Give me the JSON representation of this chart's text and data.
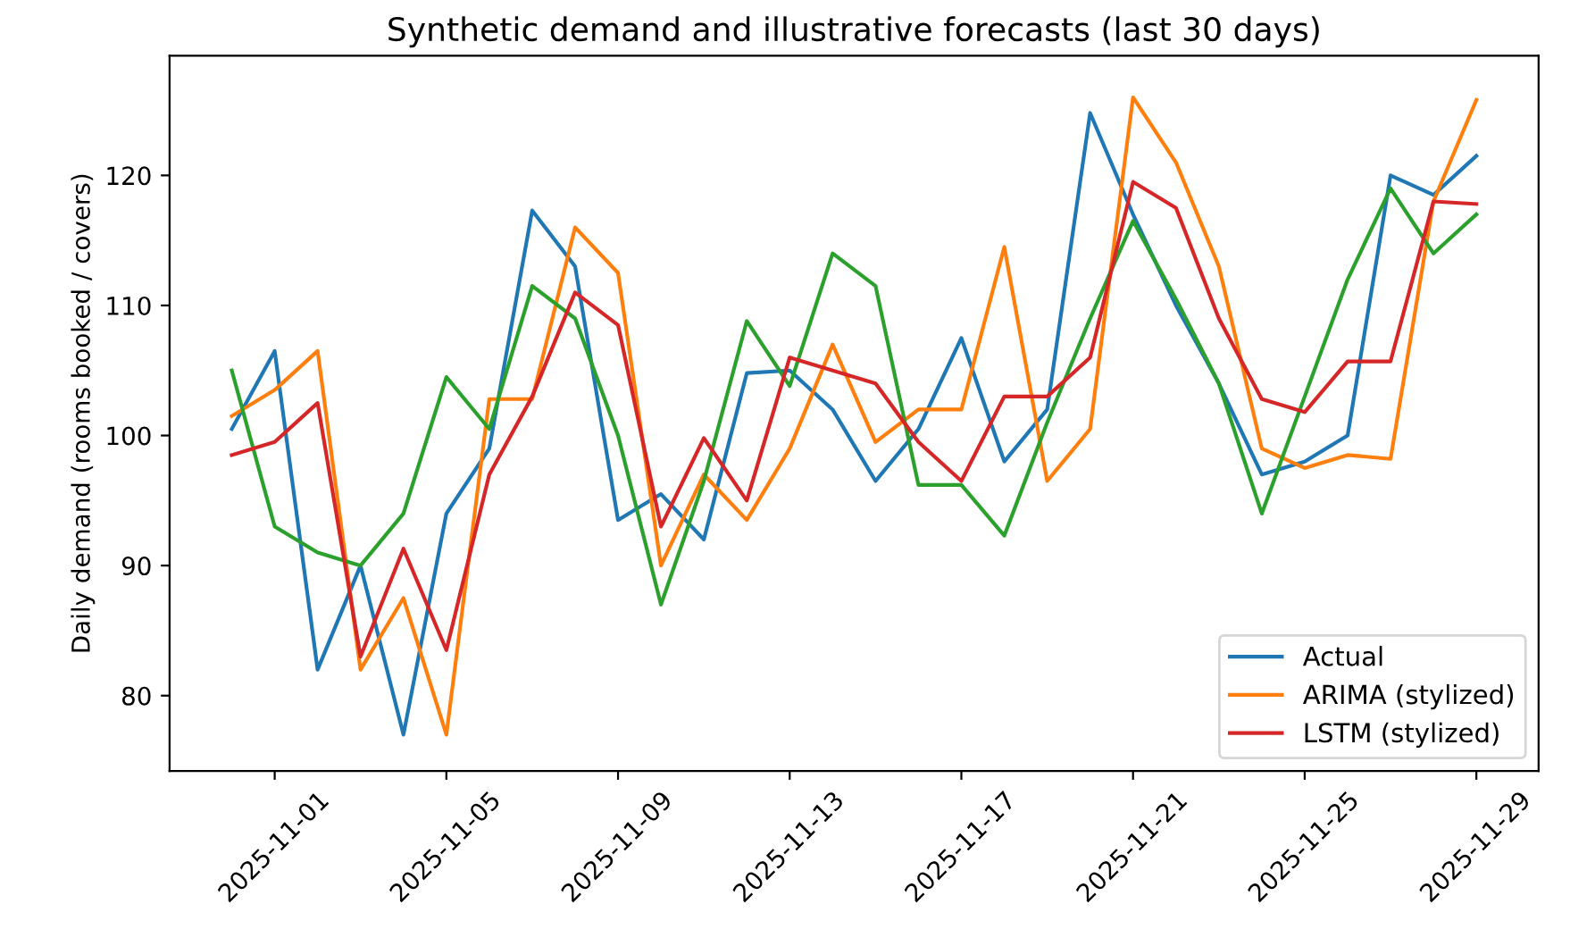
{
  "chart_data": {
    "type": "line",
    "title": "Synthetic demand and illustrative forecasts (last 30 days)",
    "ylabel": "Daily demand (rooms booked / covers)",
    "x": [
      "2025-10-31",
      "2025-11-01",
      "2025-11-02",
      "2025-11-03",
      "2025-11-04",
      "2025-11-05",
      "2025-11-06",
      "2025-11-07",
      "2025-11-08",
      "2025-11-09",
      "2025-11-10",
      "2025-11-11",
      "2025-11-12",
      "2025-11-13",
      "2025-11-14",
      "2025-11-15",
      "2025-11-16",
      "2025-11-17",
      "2025-11-18",
      "2025-11-19",
      "2025-11-20",
      "2025-11-21",
      "2025-11-22",
      "2025-11-23",
      "2025-11-24",
      "2025-11-25",
      "2025-11-26",
      "2025-11-27",
      "2025-11-28",
      "2025-11-29"
    ],
    "series": [
      {
        "name": "Actual",
        "color": "#1f77b4",
        "values": [
          100.5,
          106.5,
          82,
          90,
          77,
          94,
          99,
          117.3,
          113,
          93.5,
          95.5,
          92,
          104.8,
          105,
          102,
          96.5,
          100.5,
          107.5,
          98,
          102,
          124.8,
          117,
          110,
          104,
          97,
          98,
          100,
          120,
          118.5,
          121.5
        ]
      },
      {
        "name": "ARIMA (stylized)",
        "color": "#ff7f0e",
        "values": [
          101.5,
          103.5,
          106.5,
          82,
          87.5,
          77,
          102.8,
          102.8,
          116,
          112.5,
          90,
          97,
          93.5,
          99,
          107,
          99.5,
          102,
          102,
          114.5,
          96.5,
          100.5,
          126,
          121,
          113,
          99,
          97.5,
          98.5,
          98.2,
          118,
          125.8
        ]
      },
      {
        "color": "#2ca02c",
        "values": [
          105,
          93,
          91,
          90,
          94,
          104.5,
          100.5,
          111.5,
          109,
          100,
          87,
          96.5,
          108.8,
          103.8,
          114,
          111.5,
          96.2,
          96.2,
          92.3,
          101,
          109,
          116.5,
          110.5,
          104,
          94,
          103,
          112,
          119,
          114,
          117
        ]
      },
      {
        "name": "LSTM (stylized)",
        "color": "#d62728",
        "values": [
          98.5,
          99.5,
          102.5,
          83,
          91.3,
          83.5,
          97,
          103,
          111,
          108.5,
          93,
          99.8,
          95,
          106,
          105,
          104,
          99.5,
          96.5,
          103,
          103,
          106,
          119.5,
          117.5,
          109,
          102.8,
          101.8,
          105.7,
          105.7,
          118,
          117.8
        ]
      }
    ],
    "xlim": [
      "2025-10-29T13:12",
      "2025-11-30T10:48"
    ],
    "xticks": [
      "2025-11-01",
      "2025-11-05",
      "2025-11-09",
      "2025-11-13",
      "2025-11-17",
      "2025-11-21",
      "2025-11-25",
      "2025-11-29"
    ],
    "ylim": [
      74.2,
      129.2
    ],
    "yticks": [
      80,
      90,
      100,
      110,
      120
    ],
    "legend": "lower right",
    "grid": false,
    "marker": "none",
    "line_style": "solid"
  }
}
